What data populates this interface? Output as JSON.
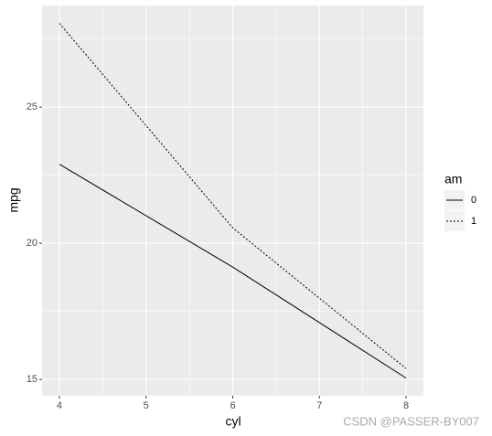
{
  "chart_data": {
    "type": "line",
    "x_label": "cyl",
    "y_label": "mpg",
    "x": [
      4,
      6,
      8
    ],
    "series": [
      {
        "name": "0",
        "color": "#000000",
        "linetype": "solid",
        "values": [
          22.9,
          19.125,
          15.05
        ]
      },
      {
        "name": "1",
        "color": "#000000",
        "linetype": "dotted",
        "values": [
          28.075,
          20.567,
          15.4
        ]
      }
    ],
    "xlim": [
      3.8,
      8.2
    ],
    "xticks": [
      4,
      5,
      6,
      7,
      8
    ],
    "ylim": [
      14.4,
      28.73
    ],
    "yticks": [
      15,
      20,
      25
    ],
    "grid": true,
    "legend_title": "am",
    "legend_position": "right",
    "watermark": "CSDN @PASSER-BY007"
  }
}
